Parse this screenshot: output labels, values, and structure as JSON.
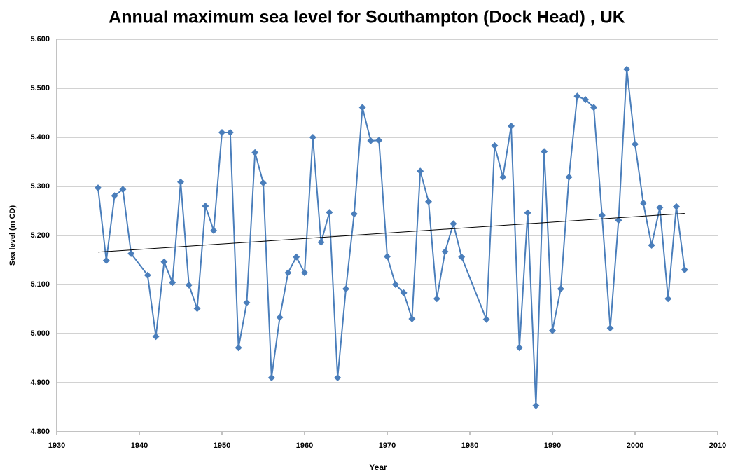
{
  "chart_data": {
    "type": "line",
    "title": "Annual maximum sea level for Southampton (Dock Head) , UK",
    "xlabel": "Year",
    "ylabel": "Sea level (m CD)",
    "x": [
      1935,
      1936,
      1937,
      1938,
      1939,
      1941,
      1942,
      1943,
      1944,
      1945,
      1946,
      1947,
      1948,
      1949,
      1950,
      1951,
      1952,
      1953,
      1954,
      1955,
      1956,
      1957,
      1958,
      1959,
      1960,
      1961,
      1962,
      1963,
      1964,
      1965,
      1966,
      1967,
      1968,
      1969,
      1970,
      1971,
      1972,
      1973,
      1974,
      1975,
      1976,
      1977,
      1978,
      1979,
      1982,
      1983,
      1984,
      1985,
      1986,
      1987,
      1988,
      1989,
      1990,
      1991,
      1992,
      1993,
      1994,
      1995,
      1996,
      1997,
      1998,
      1999,
      2000,
      2001,
      2002,
      2003,
      2004,
      2005,
      2006
    ],
    "series": [
      {
        "color": "#4a7ebb",
        "values": [
          5.297,
          5.149,
          5.281,
          5.294,
          5.163,
          5.119,
          4.994,
          5.146,
          5.104,
          5.309,
          5.099,
          5.051,
          5.26,
          5.21,
          5.41,
          5.41,
          4.971,
          5.063,
          5.369,
          5.307,
          4.91,
          5.033,
          5.124,
          5.156,
          5.124,
          5.4,
          5.186,
          5.247,
          4.91,
          5.091,
          5.244,
          5.461,
          5.393,
          5.394,
          5.157,
          5.1,
          5.083,
          5.03,
          5.331,
          5.269,
          5.071,
          5.167,
          5.224,
          5.156,
          5.029,
          5.383,
          5.319,
          5.423,
          4.971,
          5.246,
          4.853,
          5.371,
          5.006,
          5.091,
          5.319,
          5.484,
          5.477,
          5.461,
          5.241,
          5.011,
          5.231,
          5.539,
          5.386,
          5.266,
          5.18,
          5.257,
          5.071,
          5.259,
          5.13
        ]
      }
    ],
    "trendline": {
      "color": "#000000",
      "x": [
        1935,
        2006
      ],
      "values": [
        5.166,
        5.245
      ]
    },
    "xlim": [
      1930,
      2010
    ],
    "xticks": [
      1930,
      1940,
      1950,
      1960,
      1970,
      1980,
      1990,
      2000,
      2010
    ],
    "ylim": [
      4.8,
      5.6
    ],
    "yticks": [
      {
        "value": 4.8,
        "label": "4.800"
      },
      {
        "value": 4.9,
        "label": "4.900"
      },
      {
        "value": 5.0,
        "label": "5.000"
      },
      {
        "value": 5.1,
        "label": "5.100"
      },
      {
        "value": 5.2,
        "label": "5.200"
      },
      {
        "value": 5.3,
        "label": "5.300"
      },
      {
        "value": 5.4,
        "label": "5.400"
      },
      {
        "value": 5.5,
        "label": "5.500"
      },
      {
        "value": 5.6,
        "label": "5.600"
      }
    ],
    "grid": true
  }
}
